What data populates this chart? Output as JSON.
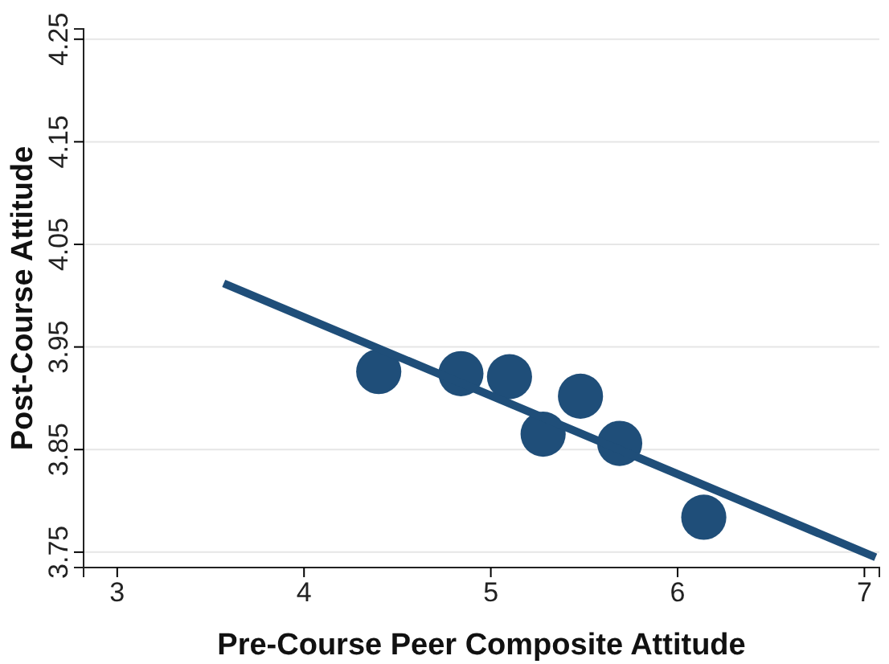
{
  "chart_data": {
    "type": "scatter",
    "xlabel": "Pre-Course Peer Composite Attitude",
    "ylabel": "Post-Course Attitude",
    "xlim": [
      2.82,
      7.08
    ],
    "ylim": [
      3.735,
      4.26
    ],
    "xticks": [
      3,
      4,
      5,
      6,
      7
    ],
    "yticks": [
      3.75,
      3.85,
      3.95,
      4.05,
      4.15,
      4.25
    ],
    "grid": "y",
    "series": [
      {
        "marker": "circle",
        "color": "#1f4e79",
        "x": [
          4.4,
          4.84,
          5.1,
          5.48,
          5.28,
          5.69,
          6.14
        ],
        "values": [
          3.926,
          3.924,
          3.921,
          3.902,
          3.865,
          3.856,
          3.784
        ]
      },
      {
        "type": "line",
        "marker": "none",
        "color": "#1f4e79",
        "x": [
          3.57,
          7.06
        ],
        "values": [
          4.012,
          3.745
        ]
      }
    ]
  }
}
